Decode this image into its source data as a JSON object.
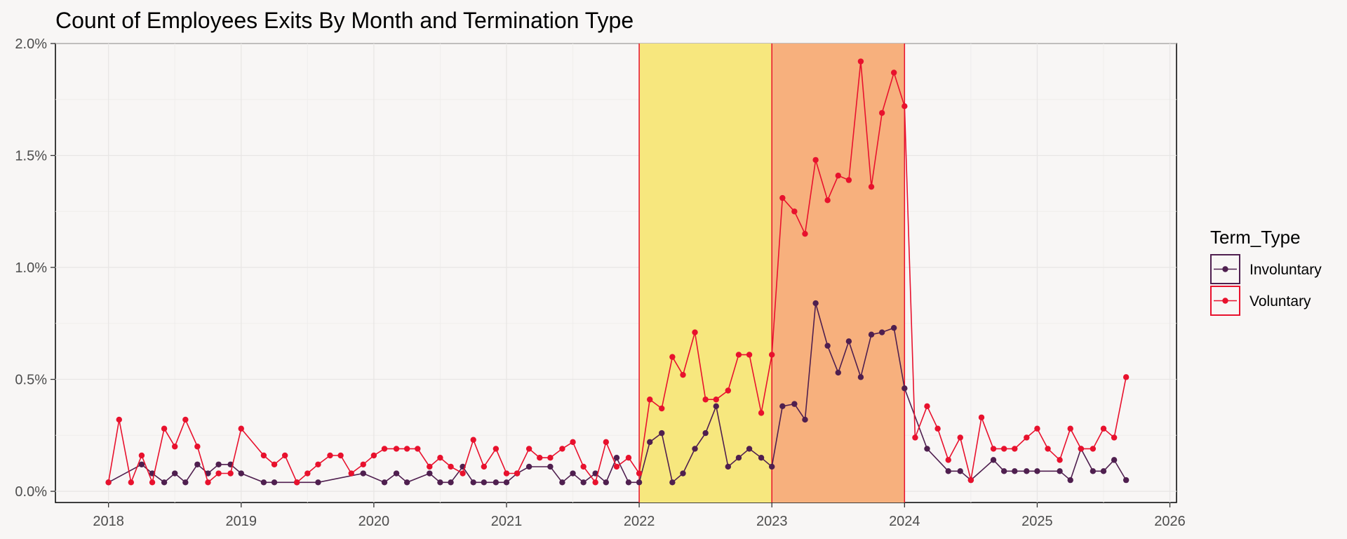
{
  "chart_data": {
    "type": "line",
    "title": "Count of Employees Exits By Month and Termination Type",
    "xlabel": "",
    "ylabel": "",
    "x_ticks": [
      "2018",
      "2019",
      "2020",
      "2021",
      "2022",
      "2023",
      "2024",
      "2025",
      "2026"
    ],
    "y_ticks": [
      "0.0%",
      "0.5%",
      "1.0%",
      "1.5%",
      "2.0%"
    ],
    "xlim": [
      2017.6,
      2026.05
    ],
    "ylim": [
      -0.0005,
      0.02
    ],
    "grid": true,
    "legend": {
      "title": "Term_Type",
      "position": "right"
    },
    "highlight_bands": [
      {
        "from": 2022.0,
        "to": 2023.0,
        "color": "#f7e77e"
      },
      {
        "from": 2023.0,
        "to": 2024.0,
        "color": "#f7b07d"
      }
    ],
    "series": [
      {
        "name": "Involuntary",
        "color": "#4f1f4f",
        "points": [
          [
            2018.0,
            0.0004
          ],
          [
            2018.25,
            0.0012
          ],
          [
            2018.33,
            0.0008
          ],
          [
            2018.42,
            0.0004
          ],
          [
            2018.5,
            0.0008
          ],
          [
            2018.58,
            0.0004
          ],
          [
            2018.67,
            0.0012
          ],
          [
            2018.75,
            0.0008
          ],
          [
            2018.83,
            0.0012
          ],
          [
            2018.92,
            0.0012
          ],
          [
            2019.0,
            0.0008
          ],
          [
            2019.17,
            0.0004
          ],
          [
            2019.25,
            0.0004
          ],
          [
            2019.42,
            0.0004
          ],
          [
            2019.58,
            0.0004
          ],
          [
            2019.92,
            0.0008
          ],
          [
            2020.08,
            0.0004
          ],
          [
            2020.17,
            0.0008
          ],
          [
            2020.25,
            0.0004
          ],
          [
            2020.42,
            0.0008
          ],
          [
            2020.5,
            0.0004
          ],
          [
            2020.58,
            0.0004
          ],
          [
            2020.67,
            0.0011
          ],
          [
            2020.75,
            0.0004
          ],
          [
            2020.83,
            0.0004
          ],
          [
            2020.92,
            0.0004
          ],
          [
            2021.0,
            0.0004
          ],
          [
            2021.08,
            0.0008
          ],
          [
            2021.17,
            0.0011
          ],
          [
            2021.33,
            0.0011
          ],
          [
            2021.42,
            0.0004
          ],
          [
            2021.5,
            0.0008
          ],
          [
            2021.58,
            0.0004
          ],
          [
            2021.67,
            0.0008
          ],
          [
            2021.75,
            0.0004
          ],
          [
            2021.83,
            0.0015
          ],
          [
            2021.92,
            0.0004
          ],
          [
            2022.0,
            0.0004
          ],
          [
            2022.08,
            0.0022
          ],
          [
            2022.17,
            0.0026
          ],
          [
            2022.25,
            0.0004
          ],
          [
            2022.33,
            0.0008
          ],
          [
            2022.42,
            0.0019
          ],
          [
            2022.5,
            0.0026
          ],
          [
            2022.58,
            0.0038
          ],
          [
            2022.67,
            0.0011
          ],
          [
            2022.75,
            0.0015
          ],
          [
            2022.83,
            0.0019
          ],
          [
            2022.92,
            0.0015
          ],
          [
            2023.0,
            0.0011
          ],
          [
            2023.08,
            0.0038
          ],
          [
            2023.17,
            0.0039
          ],
          [
            2023.25,
            0.0032
          ],
          [
            2023.33,
            0.0084
          ],
          [
            2023.42,
            0.0065
          ],
          [
            2023.5,
            0.0053
          ],
          [
            2023.58,
            0.0067
          ],
          [
            2023.67,
            0.0051
          ],
          [
            2023.75,
            0.007
          ],
          [
            2023.83,
            0.0071
          ],
          [
            2023.92,
            0.0073
          ],
          [
            2024.0,
            0.0046
          ],
          [
            2024.17,
            0.0019
          ],
          [
            2024.33,
            0.0009
          ],
          [
            2024.42,
            0.0009
          ],
          [
            2024.5,
            0.0005
          ],
          [
            2024.67,
            0.0014
          ],
          [
            2024.75,
            0.0009
          ],
          [
            2024.83,
            0.0009
          ],
          [
            2024.92,
            0.0009
          ],
          [
            2025.0,
            0.0009
          ],
          [
            2025.17,
            0.0009
          ],
          [
            2025.25,
            0.0005
          ],
          [
            2025.33,
            0.0019
          ],
          [
            2025.42,
            0.0009
          ],
          [
            2025.5,
            0.0009
          ],
          [
            2025.58,
            0.0014
          ],
          [
            2025.67,
            0.0005
          ]
        ]
      },
      {
        "name": "Voluntary",
        "color": "#e8112d",
        "points": [
          [
            2018.0,
            0.0004
          ],
          [
            2018.08,
            0.0032
          ],
          [
            2018.17,
            0.0004
          ],
          [
            2018.25,
            0.0016
          ],
          [
            2018.33,
            0.0004
          ],
          [
            2018.42,
            0.0028
          ],
          [
            2018.5,
            0.002
          ],
          [
            2018.58,
            0.0032
          ],
          [
            2018.67,
            0.002
          ],
          [
            2018.75,
            0.0004
          ],
          [
            2018.83,
            0.0008
          ],
          [
            2018.92,
            0.0008
          ],
          [
            2019.0,
            0.0028
          ],
          [
            2019.17,
            0.0016
          ],
          [
            2019.25,
            0.0012
          ],
          [
            2019.33,
            0.0016
          ],
          [
            2019.42,
            0.0004
          ],
          [
            2019.5,
            0.0008
          ],
          [
            2019.58,
            0.0012
          ],
          [
            2019.67,
            0.0016
          ],
          [
            2019.75,
            0.0016
          ],
          [
            2019.83,
            0.0008
          ],
          [
            2019.92,
            0.0012
          ],
          [
            2020.0,
            0.0016
          ],
          [
            2020.08,
            0.0019
          ],
          [
            2020.17,
            0.0019
          ],
          [
            2020.25,
            0.0019
          ],
          [
            2020.33,
            0.0019
          ],
          [
            2020.42,
            0.0011
          ],
          [
            2020.5,
            0.0015
          ],
          [
            2020.58,
            0.0011
          ],
          [
            2020.67,
            0.0008
          ],
          [
            2020.75,
            0.0023
          ],
          [
            2020.83,
            0.0011
          ],
          [
            2020.92,
            0.0019
          ],
          [
            2021.0,
            0.0008
          ],
          [
            2021.08,
            0.0008
          ],
          [
            2021.17,
            0.0019
          ],
          [
            2021.25,
            0.0015
          ],
          [
            2021.33,
            0.0015
          ],
          [
            2021.42,
            0.0019
          ],
          [
            2021.5,
            0.0022
          ],
          [
            2021.58,
            0.0011
          ],
          [
            2021.67,
            0.0004
          ],
          [
            2021.75,
            0.0022
          ],
          [
            2021.83,
            0.0011
          ],
          [
            2021.92,
            0.0015
          ],
          [
            2022.0,
            0.0008
          ],
          [
            2022.08,
            0.0041
          ],
          [
            2022.17,
            0.0037
          ],
          [
            2022.25,
            0.006
          ],
          [
            2022.33,
            0.0052
          ],
          [
            2022.42,
            0.0071
          ],
          [
            2022.5,
            0.0041
          ],
          [
            2022.58,
            0.0041
          ],
          [
            2022.67,
            0.0045
          ],
          [
            2022.75,
            0.0061
          ],
          [
            2022.83,
            0.0061
          ],
          [
            2022.92,
            0.0035
          ],
          [
            2023.0,
            0.0061
          ],
          [
            2023.08,
            0.0131
          ],
          [
            2023.17,
            0.0125
          ],
          [
            2023.25,
            0.0115
          ],
          [
            2023.33,
            0.0148
          ],
          [
            2023.42,
            0.013
          ],
          [
            2023.5,
            0.0141
          ],
          [
            2023.58,
            0.0139
          ],
          [
            2023.67,
            0.0192
          ],
          [
            2023.75,
            0.0136
          ],
          [
            2023.83,
            0.0169
          ],
          [
            2023.92,
            0.0187
          ],
          [
            2024.0,
            0.0172
          ],
          [
            2024.08,
            0.0024
          ],
          [
            2024.17,
            0.0038
          ],
          [
            2024.25,
            0.0028
          ],
          [
            2024.33,
            0.0014
          ],
          [
            2024.42,
            0.0024
          ],
          [
            2024.5,
            0.0005
          ],
          [
            2024.58,
            0.0033
          ],
          [
            2024.67,
            0.0019
          ],
          [
            2024.75,
            0.0019
          ],
          [
            2024.83,
            0.0019
          ],
          [
            2024.92,
            0.0024
          ],
          [
            2025.0,
            0.0028
          ],
          [
            2025.08,
            0.0019
          ],
          [
            2025.17,
            0.0014
          ],
          [
            2025.25,
            0.0028
          ],
          [
            2025.33,
            0.0019
          ],
          [
            2025.42,
            0.0019
          ],
          [
            2025.5,
            0.0028
          ],
          [
            2025.58,
            0.0024
          ],
          [
            2025.67,
            0.0051
          ]
        ]
      }
    ]
  }
}
